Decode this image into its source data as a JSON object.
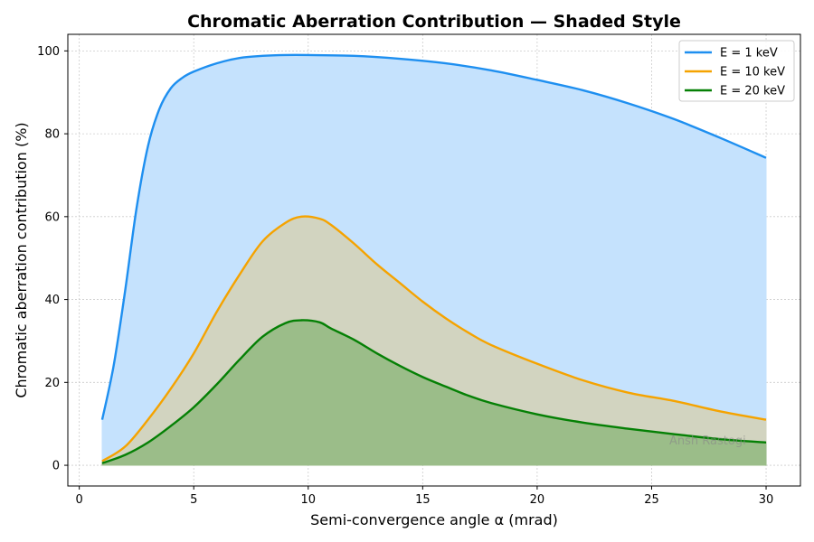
{
  "chart_data": {
    "type": "area",
    "title": "Chromatic Aberration Contribution — Shaded Style",
    "xlabel": "Semi-convergence angle α (mrad)",
    "ylabel": "Chromatic aberration contribution (%)",
    "xlim": [
      -0.5,
      31.5
    ],
    "ylim": [
      -5,
      104
    ],
    "xticks": [
      0,
      5,
      10,
      15,
      20,
      25,
      30
    ],
    "yticks": [
      0,
      20,
      40,
      60,
      80,
      100
    ],
    "grid": true,
    "legend_position": "top-right",
    "watermark": "Ansh Rastogi",
    "series": [
      {
        "name": "E = 1 keV",
        "color": "#1e8ff0",
        "fill": "#c5e2fd",
        "x": [
          1,
          1.5,
          2,
          2.5,
          3,
          3.5,
          4,
          4.5,
          5,
          6,
          7,
          8,
          9,
          10,
          12,
          14,
          16,
          18,
          20,
          22,
          24,
          26,
          28,
          30
        ],
        "y": [
          11,
          24,
          42,
          62,
          77,
          86,
          91,
          93.5,
          95,
          97,
          98.3,
          98.8,
          99,
          99,
          98.8,
          98.1,
          97,
          95.3,
          93,
          90.5,
          87.3,
          83.5,
          79,
          74.2
        ]
      },
      {
        "name": "E = 10 keV",
        "color": "#f5a300",
        "fill": "#d2d4c0",
        "x": [
          1,
          2,
          3,
          4,
          5,
          6,
          7,
          8,
          9,
          9.7,
          10.5,
          11,
          12,
          13,
          14,
          15,
          16,
          17,
          18,
          20,
          22,
          24,
          26,
          28,
          30
        ],
        "y": [
          1,
          4.5,
          11,
          18.5,
          27,
          37,
          46,
          54,
          58.5,
          60,
          59.5,
          58,
          53.5,
          48.5,
          44,
          39.5,
          35.5,
          32,
          29,
          24.5,
          20.5,
          17.5,
          15.5,
          13,
          11
        ]
      },
      {
        "name": "E = 20 keV",
        "color": "#058005",
        "fill": "#9bbd89",
        "x": [
          1,
          2,
          3,
          4,
          5,
          6,
          7,
          8,
          9,
          9.7,
          10.5,
          11,
          12,
          13,
          14,
          15,
          16,
          17,
          18,
          20,
          22,
          24,
          26,
          28,
          30
        ],
        "y": [
          0.5,
          2.5,
          5.5,
          9.5,
          14,
          19.5,
          25.5,
          31,
          34.3,
          35,
          34.5,
          33,
          30.3,
          27,
          24,
          21.3,
          19,
          16.8,
          15,
          12.3,
          10.3,
          8.8,
          7.5,
          6.3,
          5.5
        ]
      }
    ]
  }
}
